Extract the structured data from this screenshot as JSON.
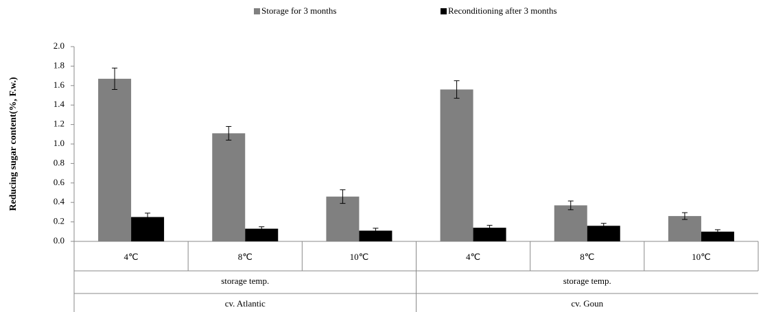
{
  "chart_data": {
    "type": "bar",
    "y_label": "Reducing sugar content(%, F.w.)",
    "categories": [
      "4℃",
      "8℃",
      "10℃",
      "4℃",
      "8℃",
      "10℃"
    ],
    "groups": [
      {
        "name": "cv. Atlantic",
        "sublabel": "storage temp."
      },
      {
        "name": "cv. Goun",
        "sublabel": "storage temp."
      }
    ],
    "series": [
      {
        "name": "Storage for 3 months",
        "color": "#808080",
        "values": [
          1.67,
          1.11,
          0.46,
          1.56,
          0.37,
          0.26
        ],
        "errors": [
          0.11,
          0.07,
          0.07,
          0.09,
          0.045,
          0.035
        ]
      },
      {
        "name": "Reconditioning after 3 months",
        "color": "#000000",
        "values": [
          0.25,
          0.13,
          0.11,
          0.14,
          0.16,
          0.1
        ],
        "errors": [
          0.04,
          0.02,
          0.025,
          0.025,
          0.025,
          0.02
        ]
      }
    ],
    "ylim": [
      0,
      2
    ],
    "yticks": [
      {
        "value": 0,
        "label": "0.0"
      },
      0.2,
      0.4,
      0.6,
      0.8,
      {
        "value": 1,
        "label": "1.0"
      },
      1.2,
      1.4,
      1.6,
      1.8,
      {
        "value": 2,
        "label": "2.0"
      }
    ],
    "legend": "top"
  }
}
